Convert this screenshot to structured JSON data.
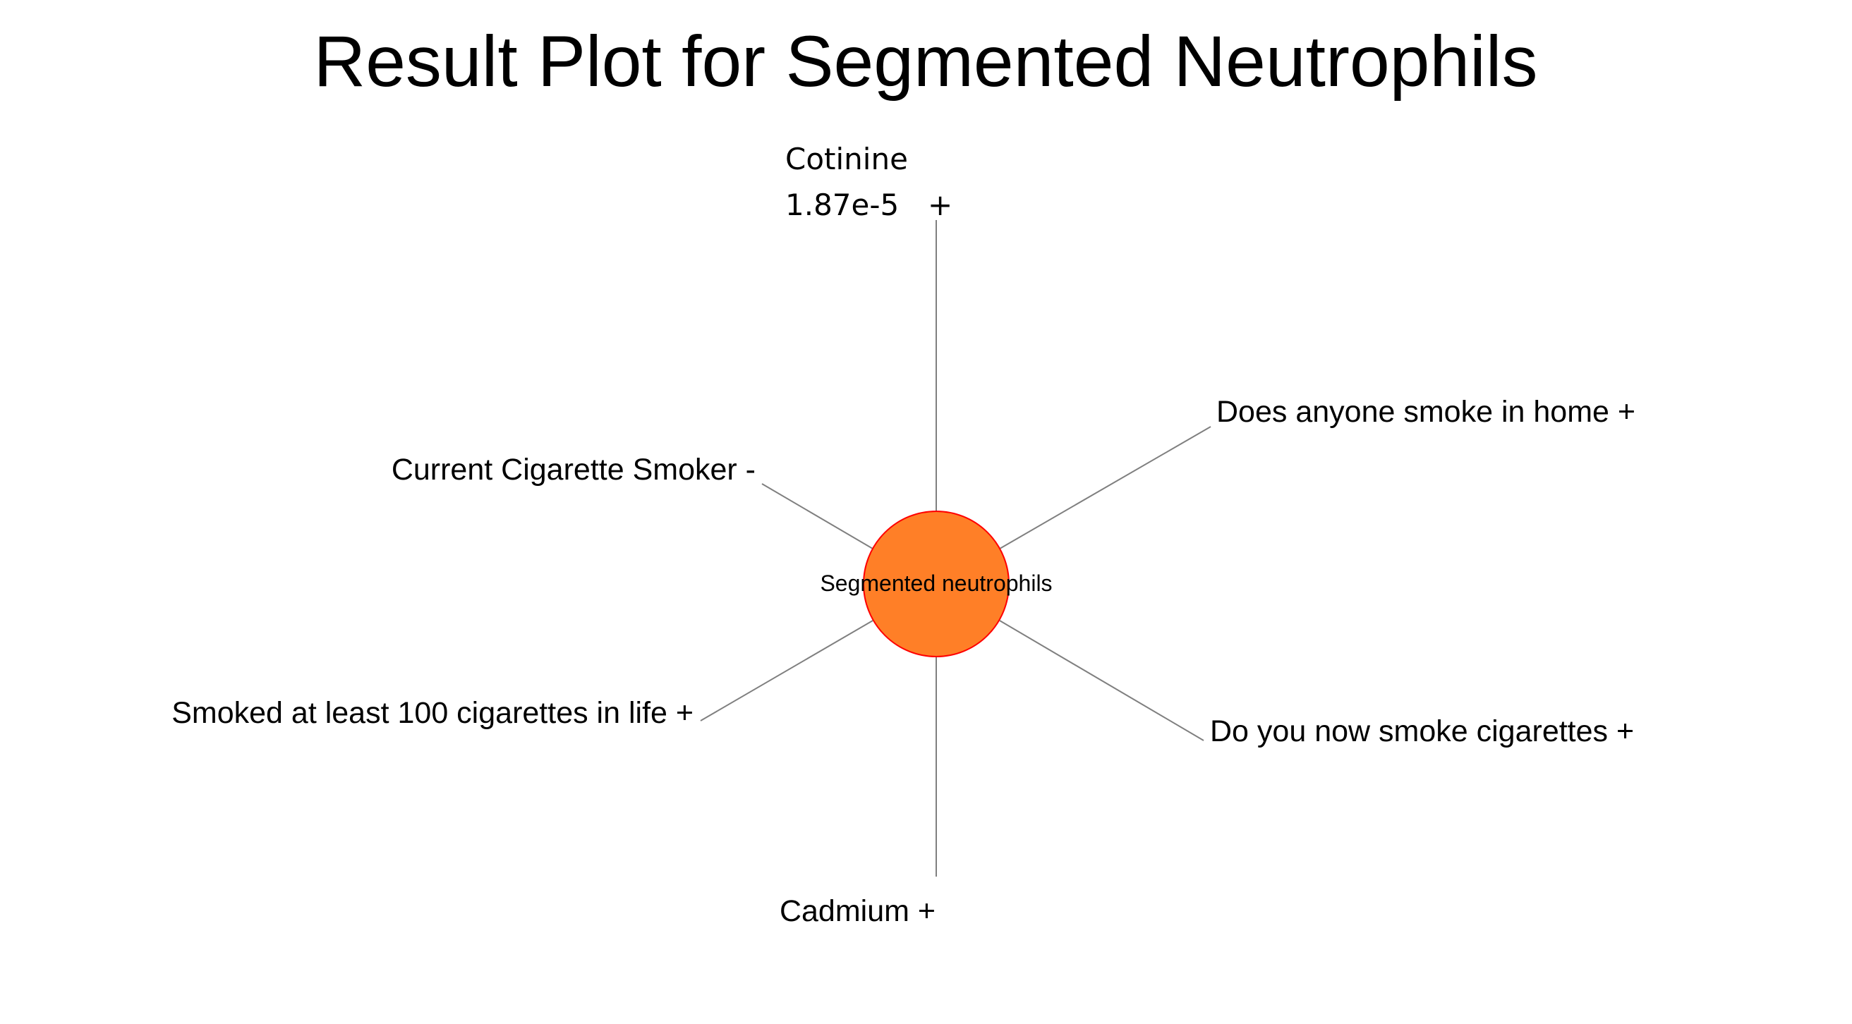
{
  "title": "Result Plot for Segmented Neutrophils",
  "center": {
    "label": "Segmented neutrophils",
    "fill_color": "#ff7f27",
    "stroke_color": "#ff0000"
  },
  "spoke_color": "#7f7f7f",
  "spokes": {
    "top": {
      "name": "Cotinine",
      "value": "1.87e-5",
      "sign": "+"
    },
    "upper_right": {
      "label": "Does anyone smoke in home +"
    },
    "upper_left": {
      "label": "Current Cigarette Smoker -"
    },
    "lower_left": {
      "label": "Smoked at least 100 cigarettes in life +"
    },
    "lower_right": {
      "label": "Do you now smoke cigarettes +"
    },
    "bottom": {
      "label": "Cadmium +"
    }
  }
}
